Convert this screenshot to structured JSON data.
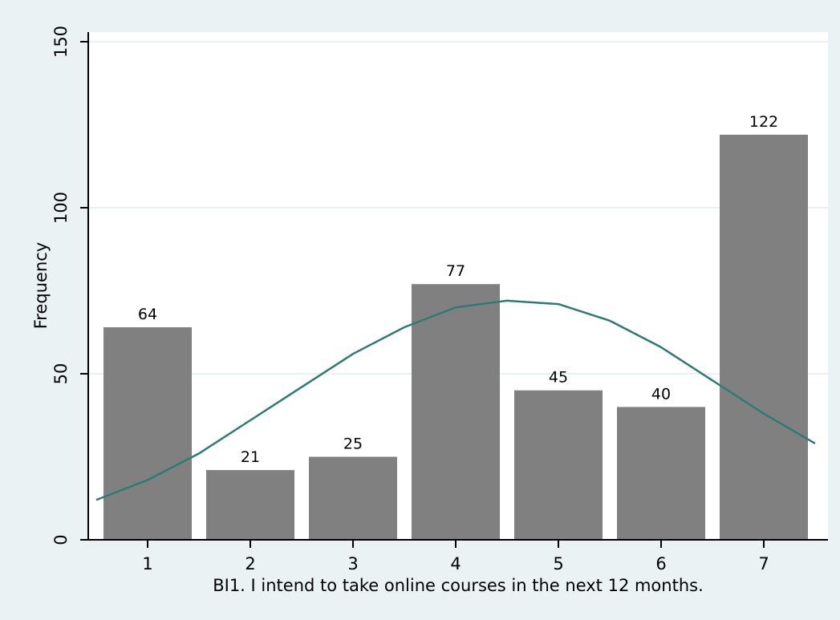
{
  "chart_data": {
    "type": "bar",
    "categories": [
      "1",
      "2",
      "3",
      "4",
      "5",
      "6",
      "7"
    ],
    "values": [
      64,
      21,
      25,
      77,
      45,
      40,
      122
    ],
    "data_labels": [
      "64",
      "21",
      "25",
      "77",
      "45",
      "40",
      "122"
    ],
    "title": "",
    "xlabel": "BI1. I intend to take online courses in the next 12 months.",
    "ylabel": "Frequency",
    "ylim": [
      0,
      150
    ],
    "yticks": [
      0,
      50,
      100,
      150
    ],
    "ytick_labels": [
      "0",
      "50",
      "100",
      "150"
    ],
    "xlim": [
      0.5,
      7.5
    ],
    "grid": true,
    "overlay": {
      "type": "normal-density-curve",
      "x": [
        0.5,
        1.0,
        1.5,
        2.0,
        2.5,
        3.0,
        3.5,
        4.0,
        4.5,
        5.0,
        5.5,
        6.0,
        6.5,
        7.0,
        7.5
      ],
      "y": [
        12,
        18,
        26,
        36,
        46,
        56,
        64,
        70,
        72,
        71,
        66,
        58,
        48,
        38,
        29
      ]
    },
    "colors": {
      "background": "#eaf2f3",
      "plot_area": "#ffffff",
      "bar": "#808080",
      "grid": "#eaf2f3",
      "curve": "#2e7b70"
    }
  }
}
